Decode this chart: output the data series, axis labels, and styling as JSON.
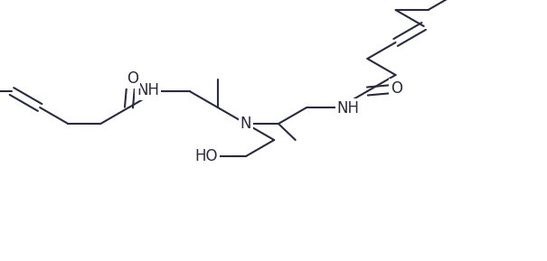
{
  "bg": "#ffffff",
  "lc": "#2a2a40",
  "lw": 1.5,
  "fs": 12,
  "figsize": [
    6.05,
    2.89
  ],
  "dpi": 100,
  "xlim": [
    0.0,
    6.05
  ],
  "ylim": [
    0.0,
    2.89
  ]
}
